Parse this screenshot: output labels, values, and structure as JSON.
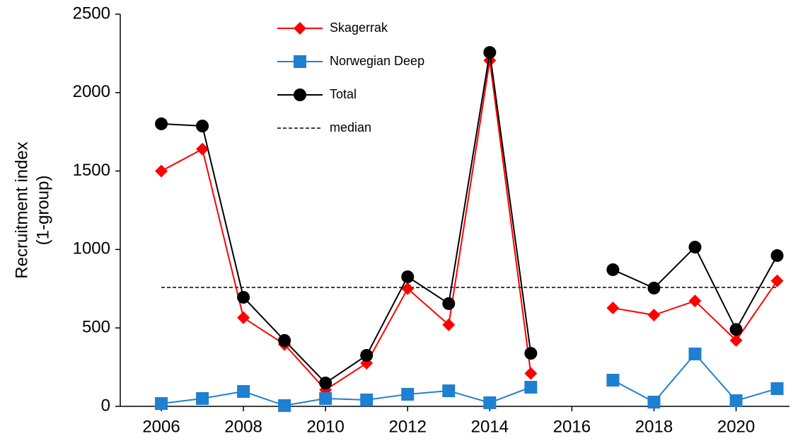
{
  "chart_data": {
    "type": "line",
    "ylabel": [
      "Recruitment index",
      "(1-group)"
    ],
    "x": [
      2006,
      2007,
      2008,
      2009,
      2010,
      2011,
      2012,
      2013,
      2014,
      2015,
      2016,
      2017,
      2018,
      2019,
      2020,
      2021
    ],
    "series": [
      {
        "name": "Skagerrak",
        "color": "#ff0000",
        "marker": "diamond",
        "values": [
          1500,
          1640,
          565,
          395,
          105,
          275,
          750,
          520,
          2205,
          210,
          null,
          627,
          582,
          672,
          420,
          800
        ]
      },
      {
        "name": "Norwegian Deep",
        "color": "#1f7fd0",
        "marker": "square",
        "values": [
          18,
          50,
          95,
          5,
          50,
          41,
          77,
          99,
          23,
          122,
          null,
          167,
          27,
          334,
          36,
          113
        ]
      },
      {
        "name": "Total",
        "color": "#000000",
        "marker": "circle",
        "values": [
          1801,
          1787,
          695,
          420,
          149,
          325,
          826,
          655,
          2256,
          338,
          null,
          871,
          754,
          1015,
          490,
          961
        ]
      }
    ],
    "median": {
      "name": "median",
      "value": 758,
      "color": "#000000"
    },
    "xlim": [
      2005,
      2021.3
    ],
    "xticks": [
      2006,
      2008,
      2010,
      2012,
      2014,
      2016,
      2018,
      2020
    ],
    "ylim": [
      0,
      2500
    ],
    "yticks": [
      0,
      500,
      1000,
      1500,
      2000,
      2500
    ],
    "legend": "top-left"
  }
}
